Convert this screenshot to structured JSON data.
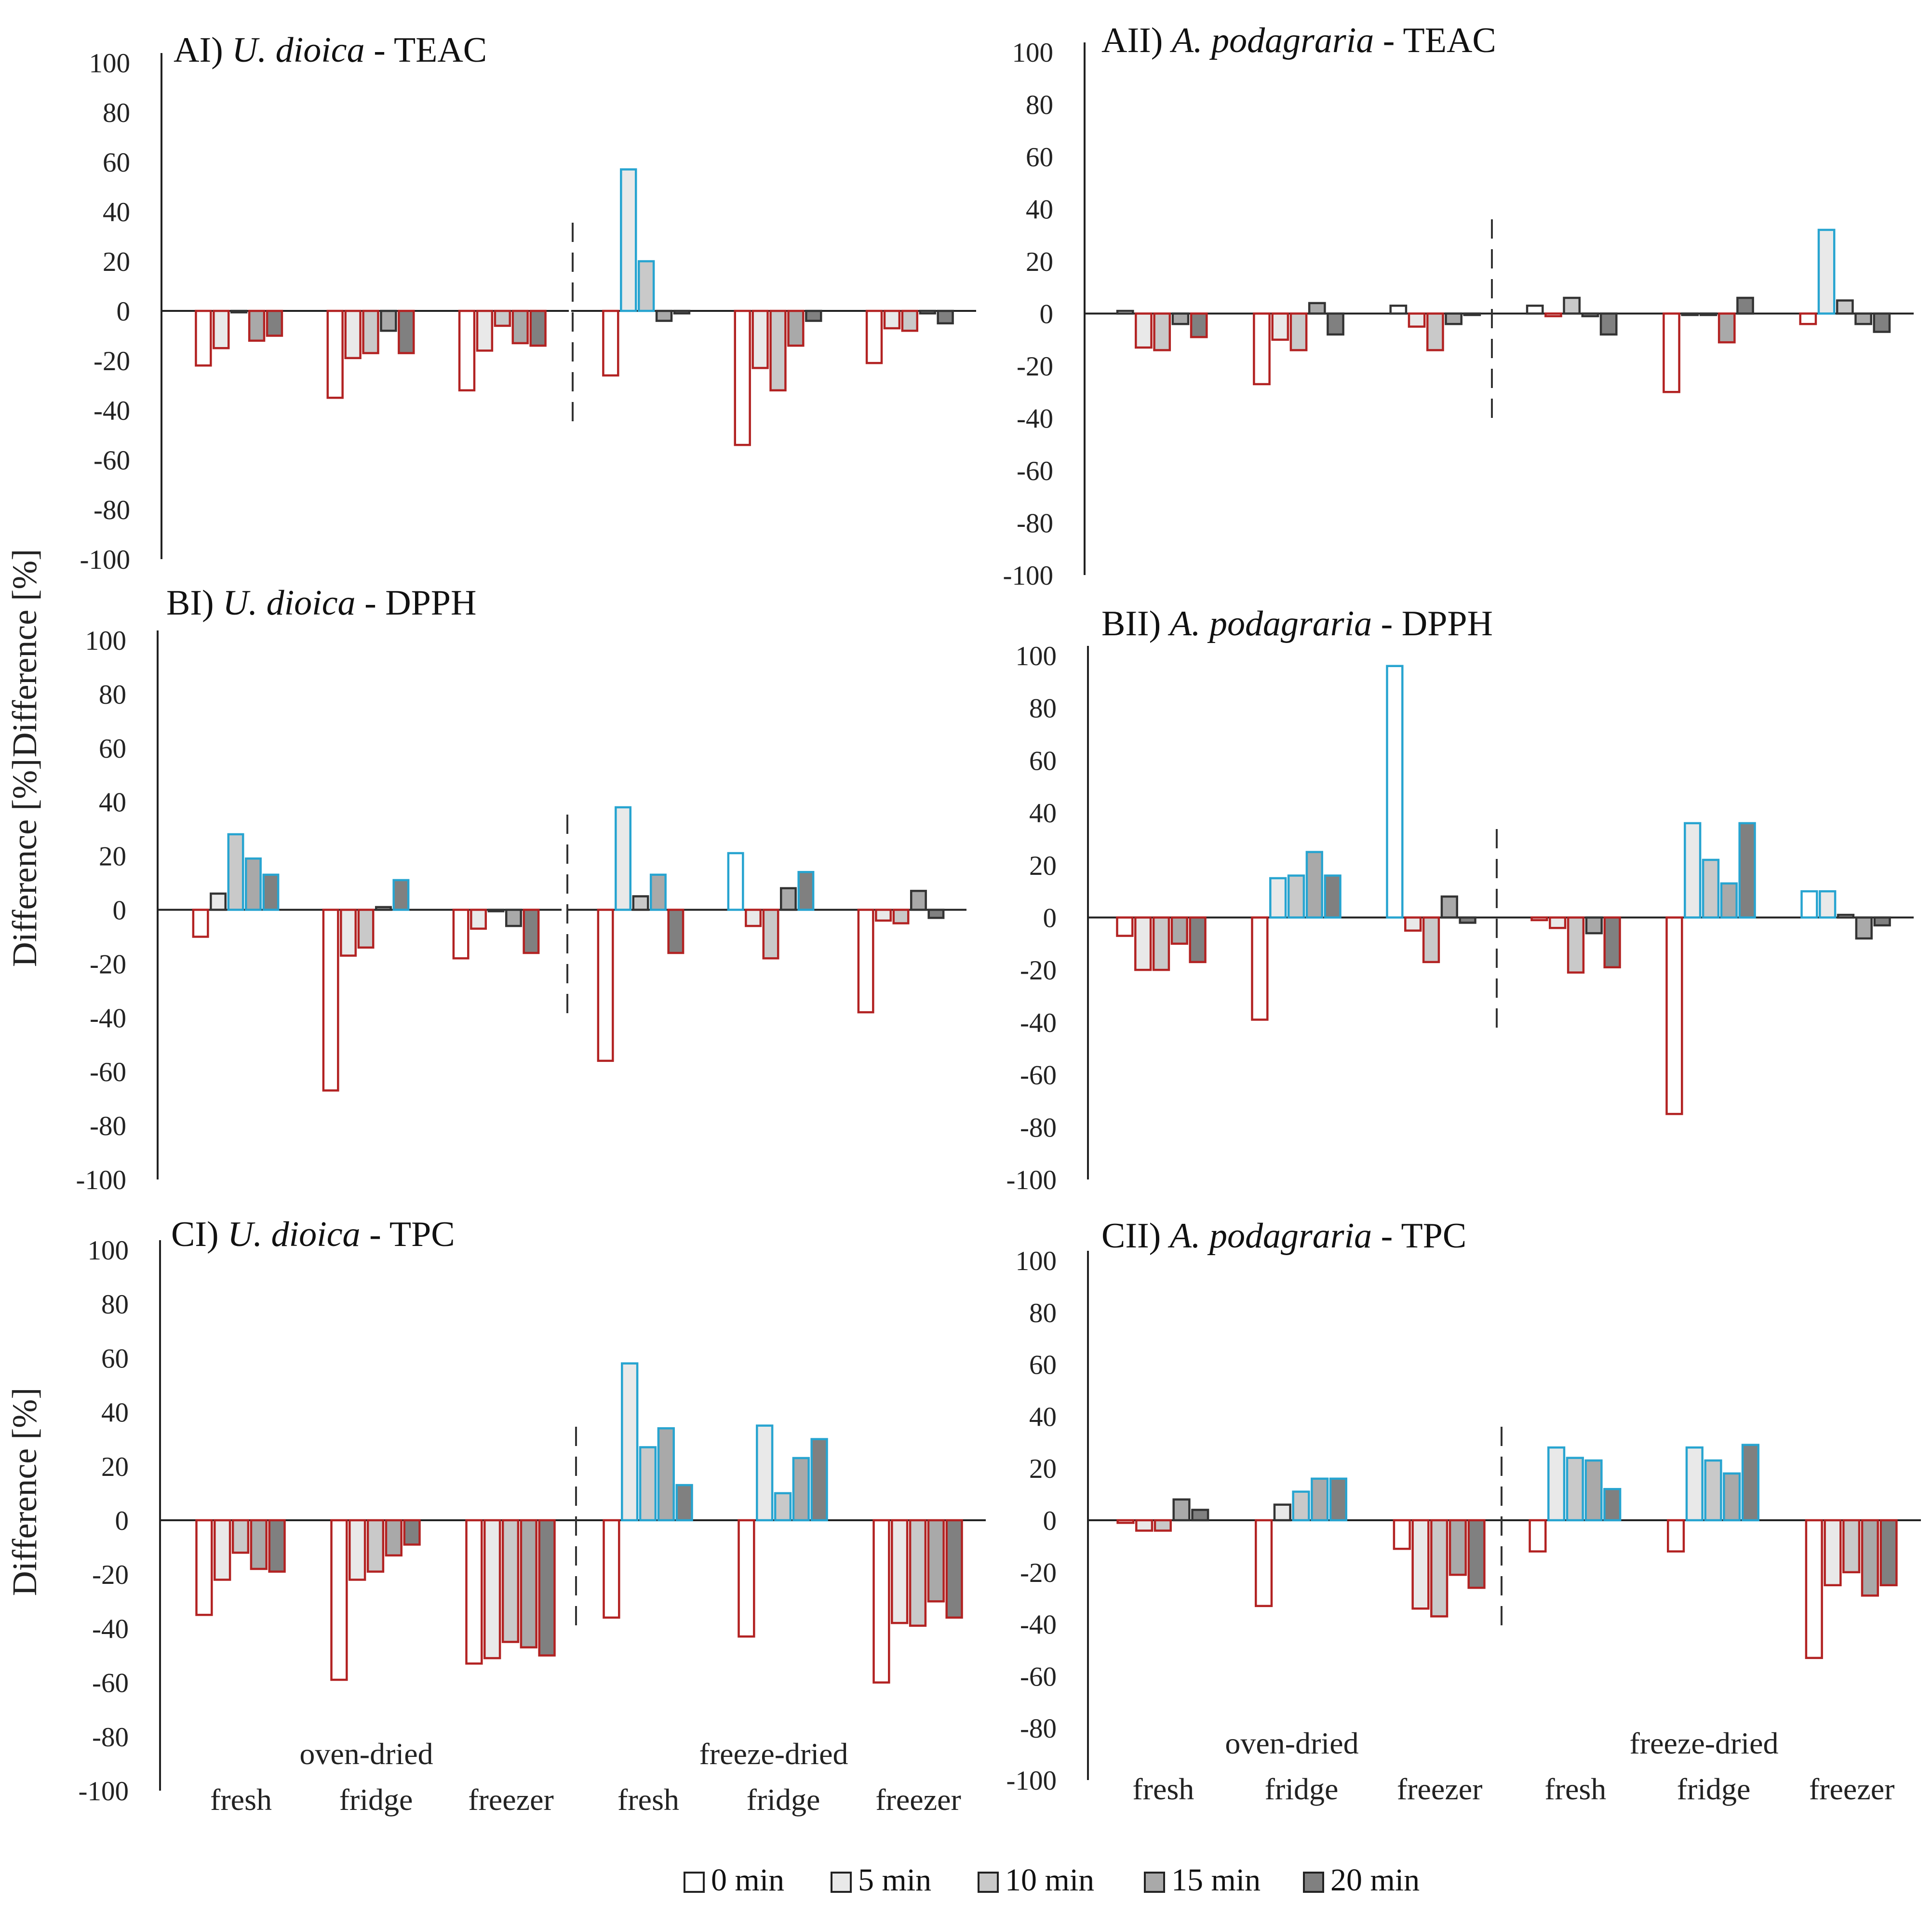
{
  "colors": {
    "fill_0": "#ffffff",
    "fill_5": "#e9e9e9",
    "fill_10": "#c9c9c9",
    "fill_15": "#a9a9a9",
    "fill_20": "#808080",
    "stroke_neg": "#b22222",
    "stroke_pos": "#27a4d0",
    "stroke_neutral": "#333333"
  },
  "legend": [
    "0 min",
    "5 min",
    "10 min",
    "15 min",
    "20 min"
  ],
  "chart_data": [
    {
      "type": "bar",
      "panel": "AI",
      "title_prefix": "AI) ",
      "title_species": "U. dioica",
      "title_suffix": " - TEAC",
      "ylabel": "Difference [%]",
      "ylim": [
        -100,
        100
      ],
      "yticks": [
        100,
        80,
        60,
        40,
        20,
        0,
        -20,
        -40,
        -60,
        -80,
        -100
      ],
      "groups": [
        "oven-dried",
        "freeze-dried"
      ],
      "categories": [
        "fresh",
        "fridge",
        "freezer"
      ],
      "show_xlabels": false,
      "series_names": [
        "0 min",
        "5 min",
        "10 min",
        "15 min",
        "20 min"
      ],
      "values": [
        [
          [
            -22,
            -15,
            0,
            -12,
            -10
          ],
          [
            -35,
            -19,
            -17,
            -8,
            -17
          ],
          [
            -32,
            -16,
            -6,
            -13,
            -14
          ]
        ],
        [
          [
            -26,
            57,
            20,
            -4,
            -1
          ],
          [
            -54,
            -23,
            -32,
            -14,
            -4
          ],
          [
            -21,
            -7,
            -8,
            -1,
            -5
          ]
        ]
      ]
    },
    {
      "type": "bar",
      "panel": "AII",
      "title_prefix": "AII) ",
      "title_species": "A. podagraria",
      "title_suffix": " - TEAC",
      "ylabel": "",
      "ylim": [
        -100,
        100
      ],
      "yticks": [
        100,
        80,
        60,
        40,
        20,
        0,
        -20,
        -40,
        -60,
        -80,
        -100
      ],
      "groups": [
        "oven-dried",
        "freeze-dried"
      ],
      "categories": [
        "fresh",
        "fridge",
        "freezer"
      ],
      "show_xlabels": false,
      "series_names": [
        "0 min",
        "5 min",
        "10 min",
        "15 min",
        "20 min"
      ],
      "values": [
        [
          [
            1,
            -13,
            -14,
            -4,
            -9
          ],
          [
            -27,
            -10,
            -14,
            4,
            -8
          ],
          [
            3,
            -5,
            -14,
            -4,
            0
          ]
        ],
        [
          [
            3,
            -1,
            6,
            -1,
            -8
          ],
          [
            -30,
            0,
            0,
            -11,
            6
          ],
          [
            -4,
            32,
            5,
            -4,
            -7
          ]
        ]
      ]
    },
    {
      "type": "bar",
      "panel": "BI",
      "title_prefix": "BI) ",
      "title_species": "U. dioica",
      "title_suffix": " - DPPH",
      "ylabel": "Difference [%]",
      "ylim": [
        -100,
        100
      ],
      "yticks": [
        100,
        80,
        60,
        40,
        20,
        0,
        -20,
        -40,
        -60,
        -80,
        -100
      ],
      "groups": [
        "oven-dried",
        "freeze-dried"
      ],
      "categories": [
        "fresh",
        "fridge",
        "freezer"
      ],
      "show_xlabels": false,
      "series_names": [
        "0 min",
        "5 min",
        "10 min",
        "15 min",
        "20 min"
      ],
      "values": [
        [
          [
            -10,
            6,
            28,
            19,
            13
          ],
          [
            -67,
            -17,
            -14,
            1,
            11
          ],
          [
            -18,
            -7,
            0,
            -6,
            -16
          ]
        ],
        [
          [
            -56,
            38,
            5,
            13,
            -16
          ],
          [
            21,
            -6,
            -18,
            8,
            14
          ],
          [
            -38,
            -4,
            -5,
            7,
            -3
          ]
        ]
      ]
    },
    {
      "type": "bar",
      "panel": "BII",
      "title_prefix": "BII) ",
      "title_species": "A. podagraria",
      "title_suffix": " - DPPH",
      "ylabel": "",
      "ylim": [
        -100,
        100
      ],
      "yticks": [
        100,
        80,
        60,
        40,
        20,
        0,
        -20,
        -40,
        -60,
        -80,
        -100
      ],
      "groups": [
        "oven-dried",
        "freeze-dried"
      ],
      "categories": [
        "fresh",
        "fridge",
        "freezer"
      ],
      "show_xlabels": false,
      "series_names": [
        "0 min",
        "5 min",
        "10 min",
        "15 min",
        "20 min"
      ],
      "values": [
        [
          [
            -7,
            -20,
            -20,
            -10,
            -17
          ],
          [
            -39,
            15,
            16,
            25,
            16
          ],
          [
            96,
            -5,
            -17,
            8,
            -2
          ]
        ],
        [
          [
            -1,
            -4,
            -21,
            -6,
            -19
          ],
          [
            -75,
            36,
            22,
            13,
            36
          ],
          [
            10,
            10,
            1,
            -8,
            -3
          ]
        ]
      ]
    },
    {
      "type": "bar",
      "panel": "CI",
      "title_prefix": "CI) ",
      "title_species": "U. dioica",
      "title_suffix": " - TPC",
      "ylabel": "Difference [%]",
      "ylim": [
        -100,
        100
      ],
      "yticks": [
        100,
        80,
        60,
        40,
        20,
        0,
        -20,
        -40,
        -60,
        -80,
        -100
      ],
      "groups": [
        "oven-dried",
        "freeze-dried"
      ],
      "categories": [
        "fresh",
        "fridge",
        "freezer"
      ],
      "show_xlabels": true,
      "series_names": [
        "0 min",
        "5 min",
        "10 min",
        "15 min",
        "20 min"
      ],
      "values": [
        [
          [
            -35,
            -22,
            -12,
            -18,
            -19
          ],
          [
            -59,
            -22,
            -19,
            -13,
            -9
          ],
          [
            -53,
            -51,
            -45,
            -47,
            -50
          ]
        ],
        [
          [
            -36,
            58,
            27,
            34,
            13
          ],
          [
            -43,
            35,
            10,
            23,
            30
          ],
          [
            -60,
            -38,
            -39,
            -30,
            -36
          ]
        ]
      ]
    },
    {
      "type": "bar",
      "panel": "CII",
      "title_prefix": "CII) ",
      "title_species": "A. podagraria",
      "title_suffix": " - TPC",
      "ylabel": "",
      "ylim": [
        -100,
        100
      ],
      "yticks": [
        100,
        80,
        60,
        40,
        20,
        0,
        -20,
        -40,
        -60,
        -80,
        -100
      ],
      "groups": [
        "oven-dried",
        "freeze-dried"
      ],
      "categories": [
        "fresh",
        "fridge",
        "freezer"
      ],
      "show_xlabels": true,
      "series_names": [
        "0 min",
        "5 min",
        "10 min",
        "15 min",
        "20 min"
      ],
      "values": [
        [
          [
            -1,
            -4,
            -4,
            8,
            4
          ],
          [
            -33,
            6,
            11,
            16,
            16
          ],
          [
            -11,
            -34,
            -37,
            -21,
            -26
          ]
        ],
        [
          [
            -12,
            28,
            24,
            23,
            12
          ],
          [
            -12,
            28,
            23,
            18,
            29
          ],
          [
            -53,
            -25,
            -20,
            -29,
            -25
          ]
        ]
      ]
    }
  ]
}
